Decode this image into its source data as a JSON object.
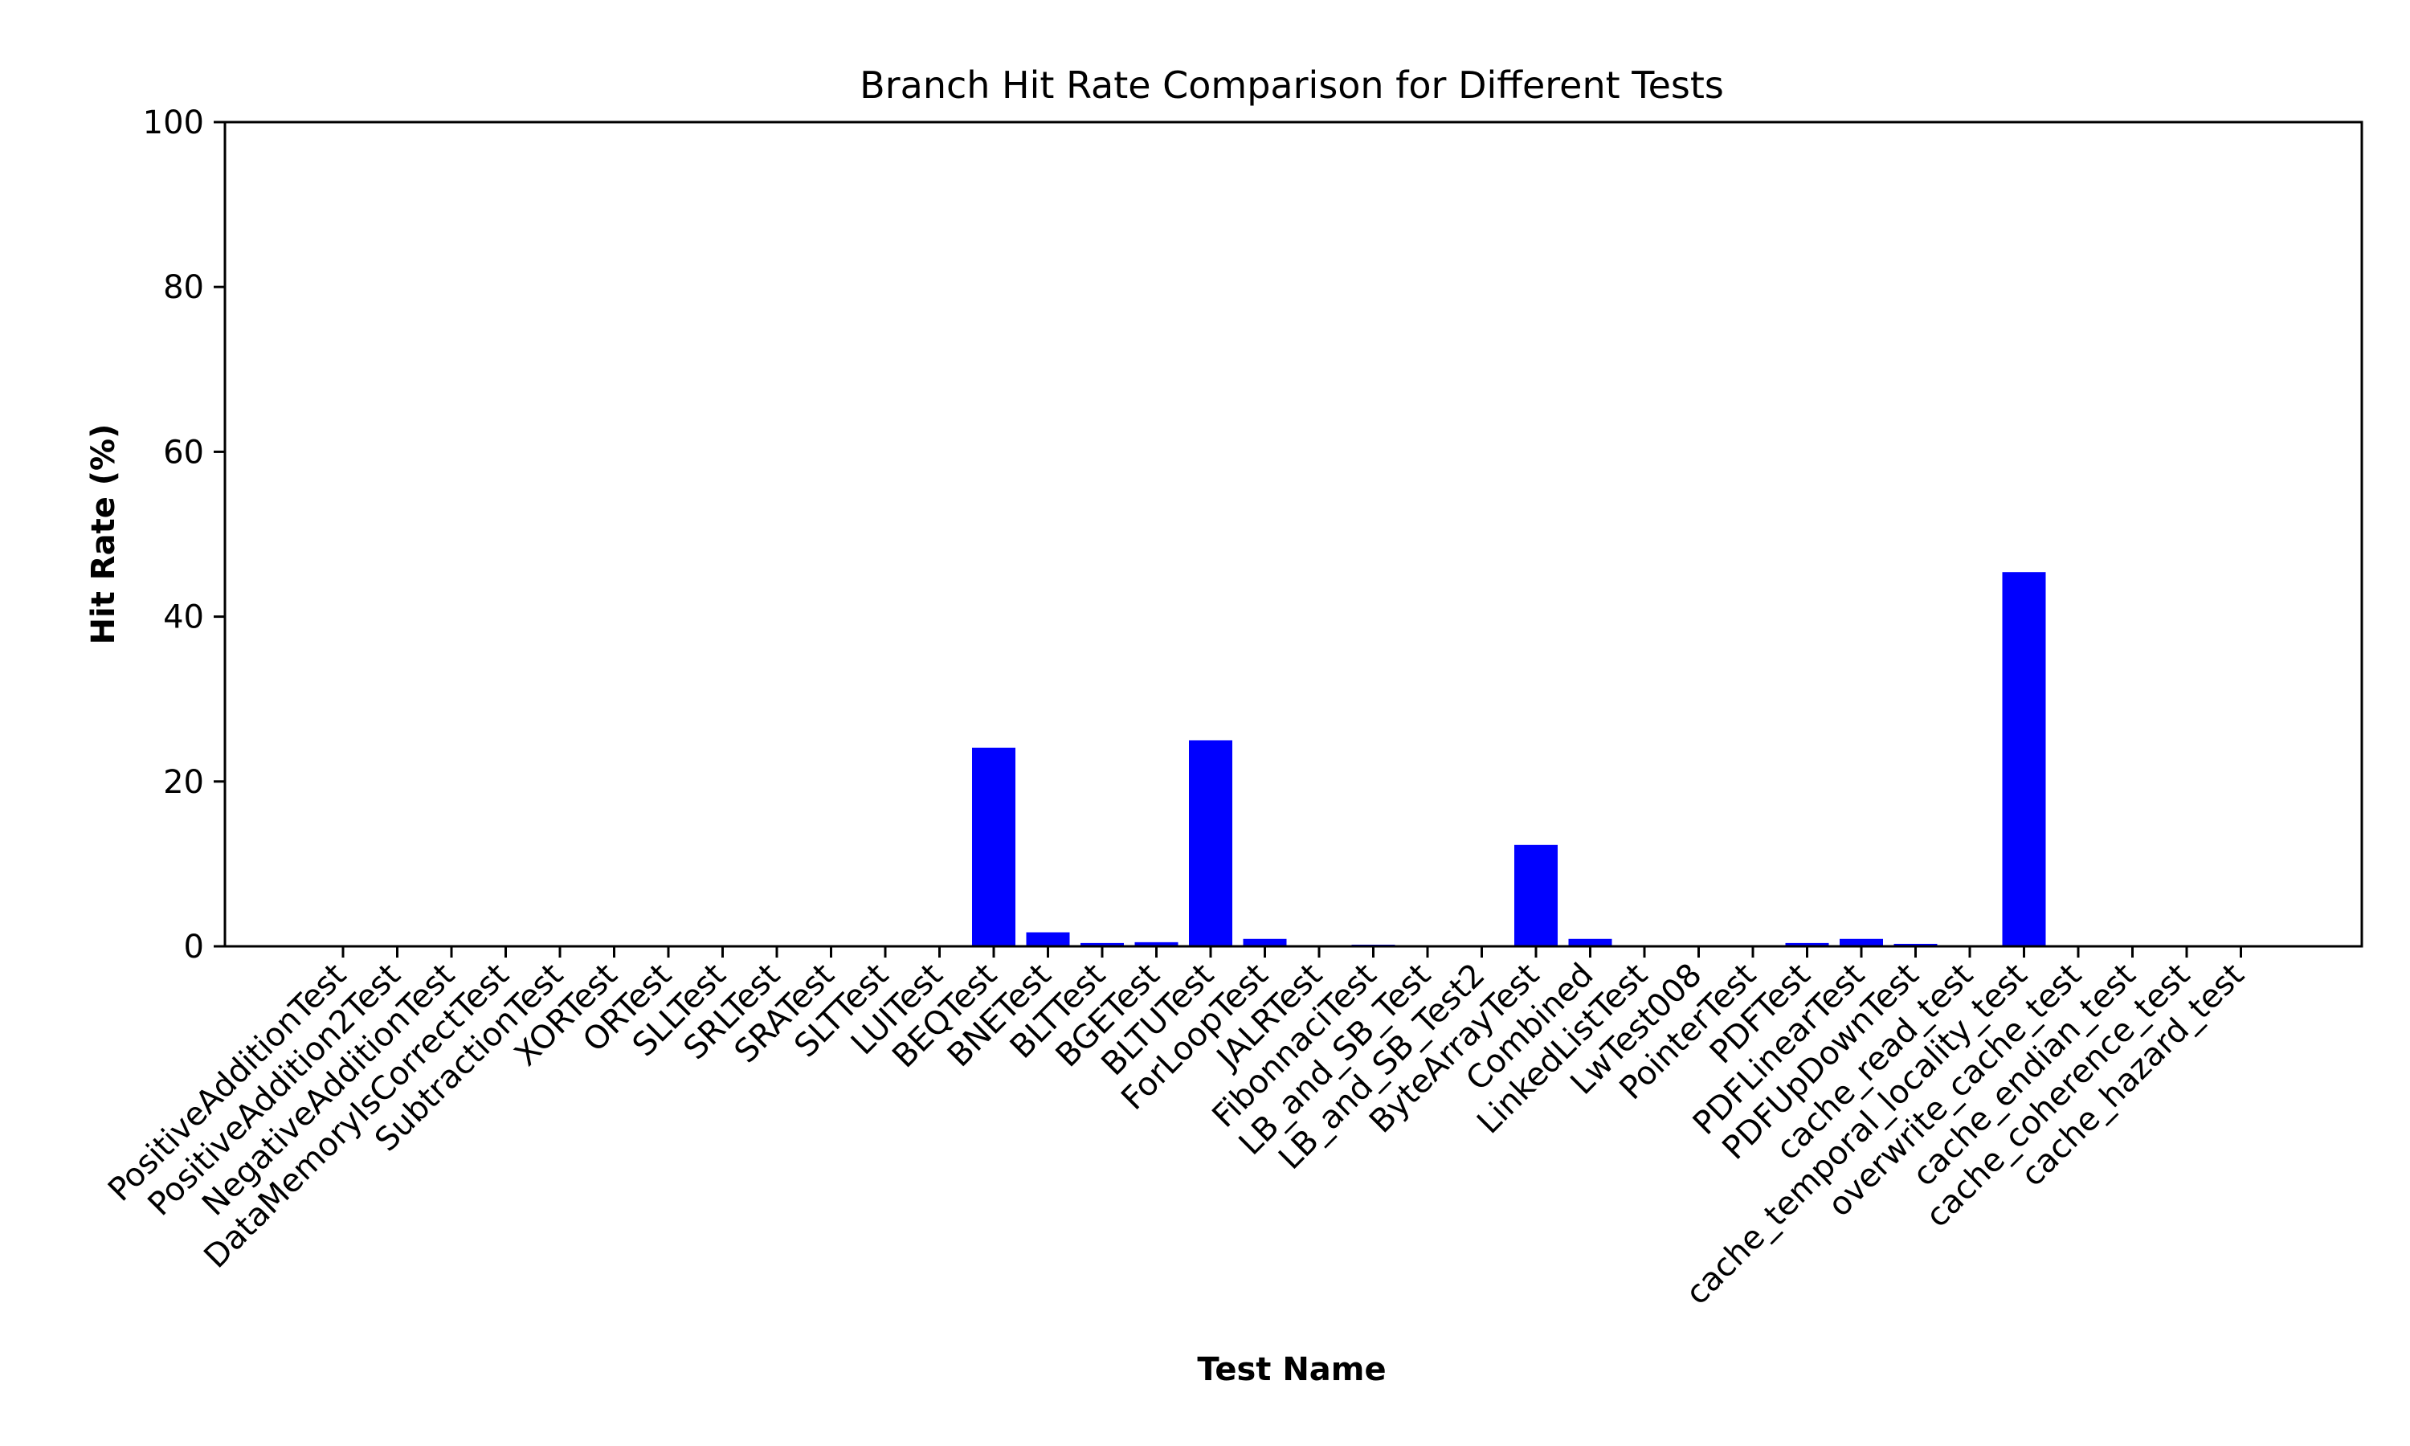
{
  "chart_data": {
    "type": "bar",
    "title": "Branch Hit Rate Comparison for Different Tests",
    "xlabel": "Test Name",
    "ylabel": "Hit Rate (%)",
    "ylim": [
      0,
      100
    ],
    "yticks": [
      0,
      20,
      40,
      60,
      80,
      100
    ],
    "grid": false,
    "bar_color": "#0000ff",
    "categories": [
      "PositiveAdditionTest",
      "PositiveAddition2Test",
      "NegativeAdditionTest",
      "DataMemoryIsCorrectTest",
      "SubtractionTest",
      "XORTest",
      "ORTest",
      "SLLTest",
      "SRLTest",
      "SRATest",
      "SLTTest",
      "LUITest",
      "BEQTest",
      "BNETest",
      "BLTTest",
      "BGETest",
      "BLTUTest",
      "ForLoopTest",
      "JALRTest",
      "FibonnaciTest",
      "LB_and_SB_Test",
      "LB_and_SB_Test2",
      "ByteArrayTest",
      "Combined",
      "LinkedListTest",
      "LwTest008",
      "PointerTest",
      "PDFTest",
      "PDFLinearTest",
      "PDFUpDownTest",
      "cache_read_test",
      "cache_temporal_locality_test",
      "overwrite_cache_test",
      "cache_endian_test",
      "cache_coherence_test",
      "cache_hazard_test"
    ],
    "values": [
      0,
      0,
      0,
      0,
      0,
      0,
      0,
      0,
      0,
      0,
      0,
      0,
      24.1,
      1.7,
      0.4,
      0.5,
      25.0,
      0.9,
      0,
      0.2,
      0,
      0,
      12.3,
      0.9,
      0,
      0,
      0,
      0.4,
      0.9,
      0.3,
      0,
      45.4,
      0,
      0,
      0,
      0
    ]
  }
}
